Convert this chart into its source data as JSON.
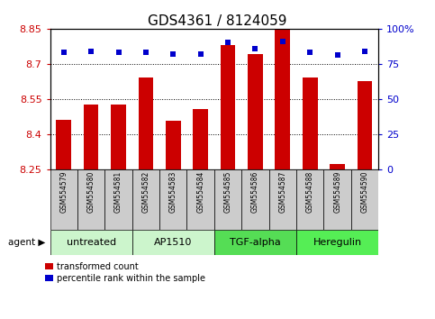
{
  "title": "GDS4361 / 8124059",
  "samples": [
    "GSM554579",
    "GSM554580",
    "GSM554581",
    "GSM554582",
    "GSM554583",
    "GSM554584",
    "GSM554585",
    "GSM554586",
    "GSM554587",
    "GSM554588",
    "GSM554589",
    "GSM554590"
  ],
  "bar_values": [
    8.46,
    8.525,
    8.525,
    8.64,
    8.455,
    8.505,
    8.78,
    8.74,
    8.845,
    8.64,
    8.27,
    8.625
  ],
  "percentile_values": [
    83,
    84,
    83,
    83,
    82,
    82,
    90,
    86,
    91,
    83,
    81,
    84
  ],
  "ymin": 8.25,
  "ymax": 8.85,
  "yticks": [
    8.25,
    8.4,
    8.55,
    8.7,
    8.85
  ],
  "right_yticks": [
    0,
    25,
    50,
    75,
    100
  ],
  "bar_color": "#cc0000",
  "dot_color": "#0000cc",
  "bar_width": 0.55,
  "agents": [
    {
      "label": "untreated",
      "start": 0,
      "end": 3,
      "color": "#ccf5cc"
    },
    {
      "label": "AP1510",
      "start": 3,
      "end": 6,
      "color": "#ccf5cc"
    },
    {
      "label": "TGF-alpha",
      "start": 6,
      "end": 9,
      "color": "#55dd55"
    },
    {
      "label": "Heregulin",
      "start": 9,
      "end": 12,
      "color": "#55ee55"
    }
  ],
  "legend_bar_label": "transformed count",
  "legend_dot_label": "percentile rank within the sample",
  "xlabel_agent": "agent",
  "title_fontsize": 11,
  "tick_fontsize": 8,
  "sample_fontsize": 5.5,
  "agent_fontsize": 8,
  "legend_fontsize": 7
}
